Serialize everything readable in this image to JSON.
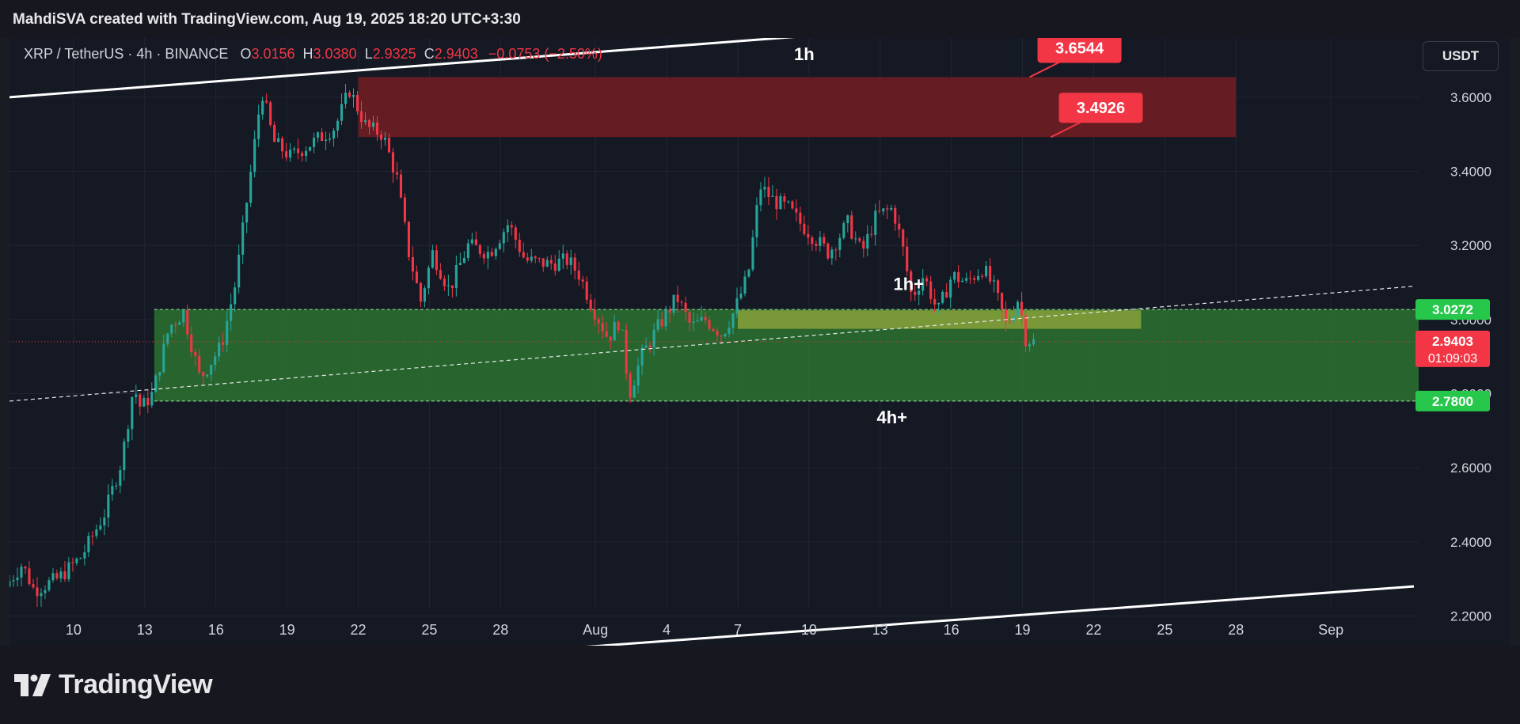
{
  "header": {
    "author_line": "MahdiSVA created with TradingView.com, Aug 19, 2025 18:20 UTC+3:30"
  },
  "legend": {
    "symbol": "XRP / TetherUS · 4h · BINANCE",
    "open_label": "O",
    "open": "3.0156",
    "high_label": "H",
    "high": "3.0380",
    "low_label": "L",
    "low": "2.9325",
    "close_label": "C",
    "close": "2.9403",
    "change": "−0.0753 (−2.50%)"
  },
  "currency_button": "USDT",
  "footer": {
    "brand": "TradingView"
  },
  "colors": {
    "background": "#151924",
    "up": "#26a69a",
    "down": "#f23645",
    "supply_zone": "#6e1d22",
    "demand_zone": "#2e7d32",
    "minor_zone": "#8fa53a",
    "trend_line": "#ffffff"
  },
  "chart_data": {
    "type": "candlestick",
    "title": "XRP / TetherUS · 4h · BINANCE",
    "interval": "4h",
    "ylim": [
      2.12,
      3.76
    ],
    "y_ticks": [
      "3.6000",
      "3.4000",
      "3.2000",
      "3.0000",
      "2.8000",
      "2.6000",
      "2.4000",
      "2.2000"
    ],
    "y_tick_values": [
      3.6,
      3.4,
      3.2,
      3.0,
      2.8,
      2.6,
      2.4,
      2.2
    ],
    "x_ticks": [
      "10",
      "13",
      "16",
      "19",
      "22",
      "25",
      "28",
      "Aug",
      "4",
      "7",
      "10",
      "13",
      "16",
      "19",
      "22",
      "25",
      "28",
      "Sep"
    ],
    "x_tick_days": [
      0,
      3,
      6,
      9,
      12,
      15,
      18,
      22,
      25,
      28,
      31,
      34,
      37,
      40,
      43,
      46,
      49,
      53
    ],
    "days_visible": [
      -2.7,
      56.7
    ],
    "price_path": [
      [
        -2.7,
        2.28
      ],
      [
        -2.0,
        2.34
      ],
      [
        -1.5,
        2.27
      ],
      [
        -0.5,
        2.3
      ],
      [
        0.5,
        2.36
      ],
      [
        1.5,
        2.48
      ],
      [
        2.2,
        2.62
      ],
      [
        2.7,
        2.82
      ],
      [
        3.0,
        2.76
      ],
      [
        3.5,
        2.8
      ],
      [
        4.2,
        2.98
      ],
      [
        4.8,
        3.02
      ],
      [
        5.5,
        2.84
      ],
      [
        6.4,
        2.93
      ],
      [
        7.0,
        3.1
      ],
      [
        7.6,
        3.38
      ],
      [
        8.1,
        3.62
      ],
      [
        8.6,
        3.48
      ],
      [
        9.3,
        3.44
      ],
      [
        10.3,
        3.48
      ],
      [
        11.2,
        3.52
      ],
      [
        11.8,
        3.62
      ],
      [
        12.5,
        3.52
      ],
      [
        13.2,
        3.5
      ],
      [
        13.8,
        3.38
      ],
      [
        14.3,
        3.18
      ],
      [
        14.8,
        3.05
      ],
      [
        15.3,
        3.18
      ],
      [
        16.0,
        3.08
      ],
      [
        16.8,
        3.2
      ],
      [
        17.7,
        3.18
      ],
      [
        18.5,
        3.26
      ],
      [
        19.2,
        3.16
      ],
      [
        20.2,
        3.15
      ],
      [
        21.0,
        3.16
      ],
      [
        21.5,
        3.12
      ],
      [
        22.0,
        3.04
      ],
      [
        22.7,
        2.95
      ],
      [
        23.2,
        3.0
      ],
      [
        23.6,
        2.8
      ],
      [
        24.1,
        2.9
      ],
      [
        24.8,
        2.98
      ],
      [
        25.6,
        3.06
      ],
      [
        26.2,
        2.98
      ],
      [
        26.8,
        3.0
      ],
      [
        27.5,
        2.96
      ],
      [
        28.0,
        3.02
      ],
      [
        28.6,
        3.12
      ],
      [
        29.1,
        3.36
      ],
      [
        29.7,
        3.32
      ],
      [
        30.3,
        3.3
      ],
      [
        30.8,
        3.26
      ],
      [
        31.4,
        3.22
      ],
      [
        32.0,
        3.18
      ],
      [
        32.8,
        3.26
      ],
      [
        33.4,
        3.18
      ],
      [
        34.0,
        3.28
      ],
      [
        34.7,
        3.3
      ],
      [
        35.1,
        3.2
      ],
      [
        35.5,
        3.06
      ],
      [
        36.0,
        3.12
      ],
      [
        36.6,
        3.02
      ],
      [
        37.2,
        3.12
      ],
      [
        37.8,
        3.1
      ],
      [
        38.5,
        3.14
      ],
      [
        39.0,
        3.08
      ],
      [
        39.5,
        2.98
      ],
      [
        40.0,
        3.06
      ],
      [
        40.3,
        2.95
      ],
      [
        40.6,
        2.94
      ]
    ],
    "zones": [
      {
        "name": "supply",
        "from_day": 12.0,
        "to_day": 49.0,
        "low": 3.4926,
        "high": 3.6544
      },
      {
        "name": "demand",
        "label": "4h+",
        "from_day": 3.4,
        "to_day": 56.7,
        "low": 2.78,
        "high": 3.0272
      },
      {
        "name": "minor",
        "label": "1h+",
        "from_day": 28.0,
        "to_day": 45.0,
        "low": 2.975,
        "high": 3.025
      }
    ],
    "trend_lines": [
      {
        "name": "upper",
        "from": [
          -2.7,
          3.6
        ],
        "to": [
          46.0,
          3.84
        ]
      },
      {
        "name": "lower",
        "from": [
          18.0,
          2.1
        ],
        "to": [
          56.5,
          2.28
        ]
      }
    ],
    "dashed_trend": {
      "from": [
        -2.7,
        2.78
      ],
      "to": [
        56.5,
        3.09
      ]
    },
    "annotations": [
      {
        "text": "1h",
        "day": 30.8,
        "price": 3.7
      },
      {
        "text": "4h+",
        "day": 34.5,
        "price": 2.72
      },
      {
        "text": "1h+",
        "day": 35.2,
        "price": 3.08
      }
    ],
    "callouts": [
      {
        "text": "3.6544",
        "day": 40.3,
        "price": 3.6544
      },
      {
        "text": "3.4926",
        "day": 41.2,
        "price": 3.4926
      }
    ],
    "price_labels": [
      {
        "text": "3.0272",
        "price": 3.0272,
        "color": "#26c74b"
      },
      {
        "text": "2.9403",
        "sub": "01:09:03",
        "price": 2.9403,
        "color": "#f23645"
      },
      {
        "text": "2.7800",
        "price": 2.78,
        "color": "#26c74b"
      }
    ]
  }
}
